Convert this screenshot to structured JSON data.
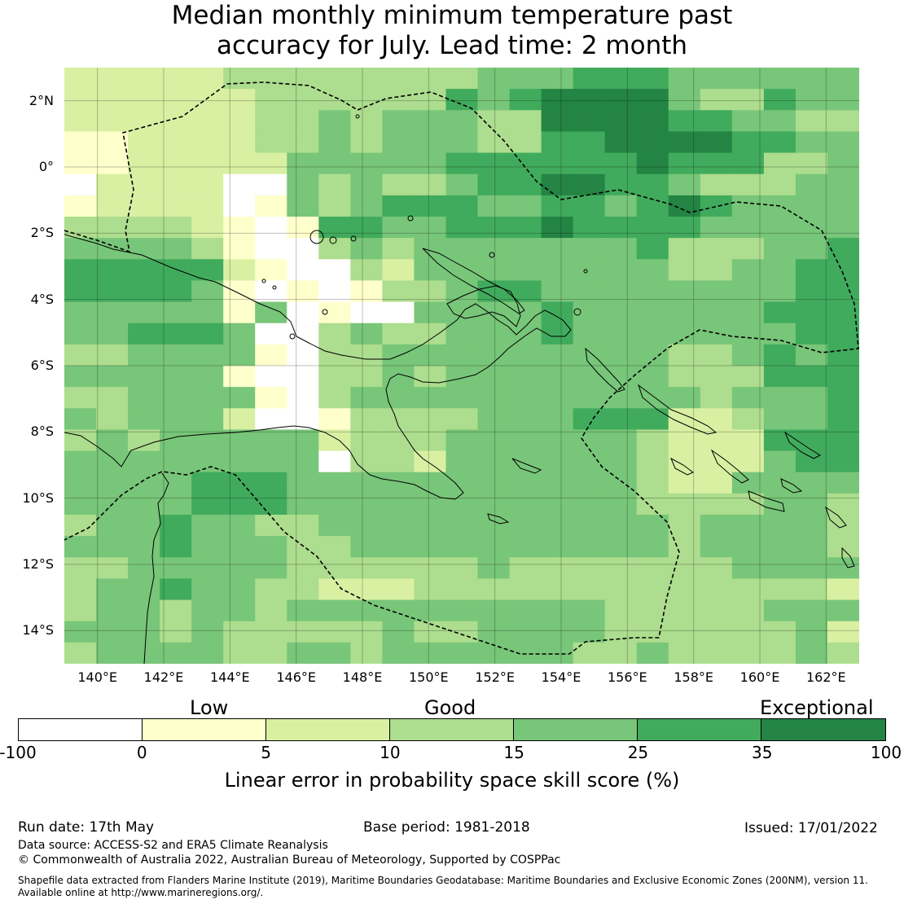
{
  "title": {
    "line1": "Median monthly minimum temperature past",
    "line2": "accuracy for July. Lead time: 2 month"
  },
  "map": {
    "lat_labels": [
      "2°N",
      "0°",
      "2°S",
      "4°S",
      "6°S",
      "8°S",
      "10°S",
      "12°S",
      "14°S"
    ],
    "lon_labels": [
      "140°E",
      "142°E",
      "144°E",
      "146°E",
      "148°E",
      "150°E",
      "152°E",
      "154°E",
      "156°E",
      "158°E",
      "160°E",
      "162°E"
    ],
    "extent": {
      "lon_min": 139,
      "lon_max": 163,
      "lat_min": -15,
      "lat_max": 3
    }
  },
  "colorbar": {
    "category_labels": [
      "Low",
      "Good",
      "Exceptional"
    ],
    "tick_labels": [
      "-100",
      "0",
      "5",
      "10",
      "15",
      "25",
      "35",
      "100"
    ],
    "colors": [
      "#ffffff",
      "#ffffcc",
      "#d9f0a3",
      "#addd8e",
      "#78c679",
      "#41ab5d",
      "#238443"
    ],
    "title": "Linear error in probability space skill score (%)"
  },
  "chart_data": {
    "type": "heatmap",
    "title": "Median monthly minimum temperature past accuracy for July. Lead time: 2 month",
    "value_label": "Linear error in probability space skill score (%)",
    "x_range": [
      139,
      163
    ],
    "y_range": [
      -15,
      3
    ],
    "class_bounds": [
      -100,
      0,
      5,
      10,
      15,
      25,
      35,
      100
    ],
    "grid_classes": [
      "2222233333333444555444444",
      "2222223333335456666433544",
      "2222223343444336666554433",
      "1122223343444335566665544",
      "1122222444445555556555334",
      "0222200434334556655433344",
      "1222201434555445545654444",
      "3333210155445556555544444",
      "4444310034344444445333445",
      "5555521003244444444334455",
      "5555410101334554444444455",
      "4444414010044445444444555",
      "4455540034334445444444455",
      "3344441033444444444334545",
      "4444410033434444444333555",
      "3344441034444444444434445",
      "4344420013333444555223445",
      "3434444423334444443222555",
      "4444444403324444443222455",
      "4444555444444444443224444",
      "4444555444444444443333443",
      "3445443344444444444344443",
      "4445444334444444444344443",
      "3344444333333433333334444",
      "3445443322233333333333332",
      "3443443444444444433333444",
      "4443433333433444433333342",
      "3444433443444444334333343"
    ]
  },
  "footer": {
    "run_date": "Run date: 17th May",
    "base_period": "Base period: 1981-2018",
    "issued": "Issued: 17/01/2022",
    "data_source": "Data source: ACCESS-S2 and ERA5 Climate Reanalysis",
    "copyright": "© Commonwealth of Australia 2022, Australian Bureau of Meteorology, Supported by COSPPac",
    "shapefile_line1": "Shapefile data extracted from Flanders Marine Institute (2019), Maritime Boundaries Geodatabase: Maritime Boundaries and Exclusive Economic Zones (200NM), version 11.",
    "shapefile_line2": "Available online at http://www.marineregions.org/."
  }
}
